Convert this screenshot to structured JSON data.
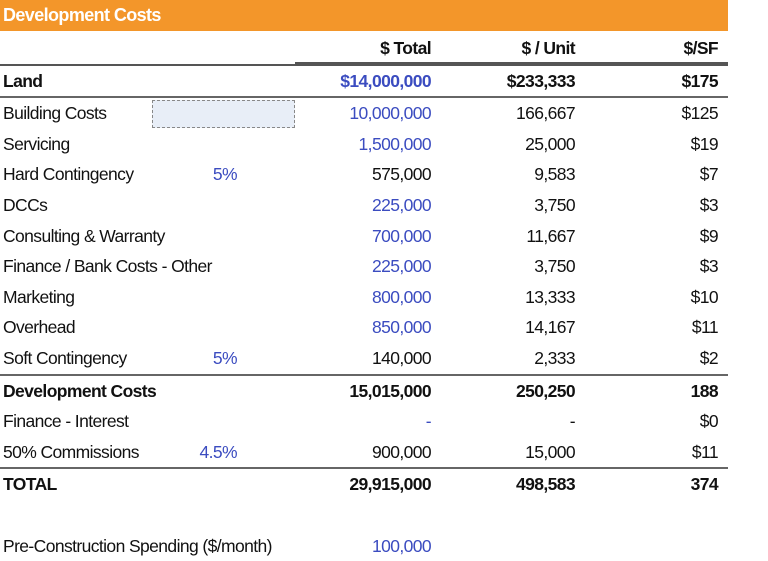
{
  "title": "Development Costs",
  "columns": {
    "total": "$ Total",
    "unit": "$ / Unit",
    "sf": "$/SF"
  },
  "rows": [
    {
      "label": "Land",
      "pct": "",
      "total": "$14,000,000",
      "unit": "$233,333",
      "sf": "$175",
      "bold": true,
      "total_blue": true
    },
    {
      "label": "Building Costs",
      "pct": "",
      "total": "10,000,000",
      "unit": "166,667",
      "sf": "$125",
      "total_blue": true,
      "input_box": true
    },
    {
      "label": "Servicing",
      "pct": "",
      "total": "1,500,000",
      "unit": "25,000",
      "sf": "$19",
      "total_blue": true
    },
    {
      "label": "Hard Contingency",
      "pct": "5%",
      "total": "575,000",
      "unit": "9,583",
      "sf": "$7"
    },
    {
      "label": "DCCs",
      "pct": "",
      "total": "225,000",
      "unit": "3,750",
      "sf": "$3",
      "total_blue": true
    },
    {
      "label": "Consulting & Warranty",
      "pct": "",
      "total": "700,000",
      "unit": "11,667",
      "sf": "$9",
      "total_blue": true
    },
    {
      "label": "Finance / Bank Costs - Other",
      "pct": "",
      "total": "225,000",
      "unit": "3,750",
      "sf": "$3",
      "total_blue": true
    },
    {
      "label": "Marketing",
      "pct": "",
      "total": "800,000",
      "unit": "13,333",
      "sf": "$10",
      "total_blue": true
    },
    {
      "label": "Overhead",
      "pct": "",
      "total": "850,000",
      "unit": "14,167",
      "sf": "$11",
      "total_blue": true
    },
    {
      "label": "Soft Contingency",
      "pct": "5%",
      "total": "140,000",
      "unit": "2,333",
      "sf": "$2"
    },
    {
      "label": "Development Costs",
      "pct": "",
      "total": "15,015,000",
      "unit": "250,250",
      "sf": "188",
      "bold": true
    },
    {
      "label": "Finance - Interest",
      "pct": "",
      "total": "-",
      "unit": "-",
      "sf": "$0",
      "total_blue": true
    },
    {
      "label": "50% Commissions",
      "pct": "4.5%",
      "total": "900,000",
      "unit": "15,000",
      "sf": "$11"
    },
    {
      "label": "TOTAL",
      "pct": "",
      "total": "29,915,000",
      "unit": "498,583",
      "sf": "374",
      "bold": true
    }
  ],
  "pre_construction": {
    "label": "Pre-Construction Spending ($/month)",
    "value": "100,000"
  },
  "colors": {
    "header": "#f3962a",
    "input_blue": "#3b4cc0"
  }
}
